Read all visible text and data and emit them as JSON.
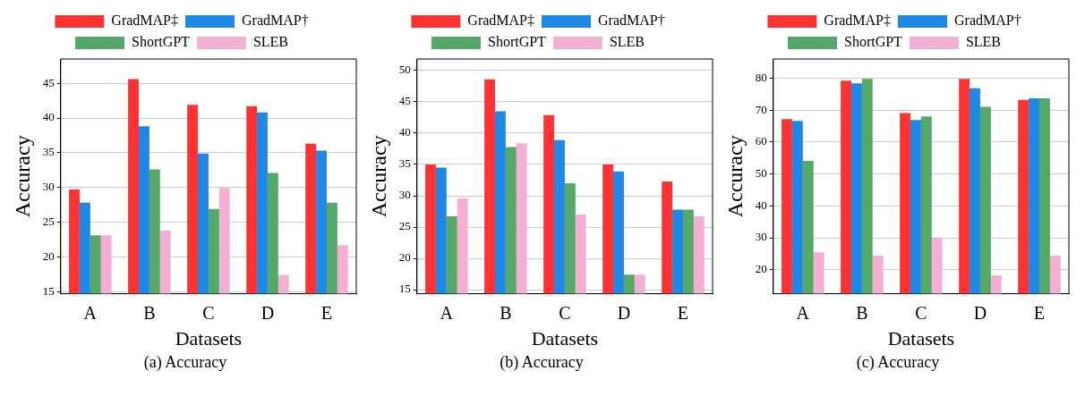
{
  "chart_data": [
    {
      "type": "bar",
      "xlabel": "Datasets",
      "ylabel": "Accuracy",
      "categories": [
        "A",
        "B",
        "C",
        "D",
        "E"
      ],
      "ylim": [
        14.7,
        48.5
      ],
      "yticks": [
        15,
        20,
        25,
        30,
        35,
        40,
        45
      ],
      "grid": "y",
      "legend": "top",
      "annotations": [
        "(a) Accuracy"
      ],
      "series": [
        {
          "name": "GradMAP‡",
          "color": "#ff3333",
          "values": [
            29.7,
            45.6,
            41.9,
            41.7,
            36.3
          ]
        },
        {
          "name": "GradMAP†",
          "color": "#1f88e5",
          "values": [
            27.8,
            38.8,
            34.9,
            40.8,
            35.3
          ]
        },
        {
          "name": "ShortGPT",
          "color": "#55a868",
          "values": [
            23.1,
            32.6,
            26.9,
            32.1,
            27.8
          ]
        },
        {
          "name": "SLEB",
          "color": "#f4afd4",
          "values": [
            23.1,
            23.8,
            29.9,
            17.4,
            21.7
          ]
        }
      ]
    },
    {
      "type": "bar",
      "xlabel": "Datasets",
      "ylabel": "Accuracy",
      "categories": [
        "A",
        "B",
        "C",
        "D",
        "E"
      ],
      "ylim": [
        14.35,
        51.85
      ],
      "yticks": [
        15,
        20,
        25,
        30,
        35,
        40,
        45,
        50
      ],
      "grid": "y",
      "legend": "top",
      "annotations": [
        "(b) Accuracy"
      ],
      "series": [
        {
          "name": "GradMAP‡",
          "color": "#ff3333",
          "values": [
            35.0,
            48.6,
            42.9,
            35.0,
            32.3
          ]
        },
        {
          "name": "GradMAP†",
          "color": "#1f88e5",
          "values": [
            34.5,
            43.5,
            38.9,
            33.9,
            27.8
          ]
        },
        {
          "name": "ShortGPT",
          "color": "#55a868",
          "values": [
            26.7,
            37.8,
            32.0,
            17.4,
            27.8
          ]
        },
        {
          "name": "SLEB",
          "color": "#f4afd4",
          "values": [
            29.6,
            38.4,
            27.0,
            17.4,
            26.7
          ]
        }
      ]
    },
    {
      "type": "bar",
      "xlabel": "Datasets",
      "ylabel": "Accuracy",
      "categories": [
        "A",
        "B",
        "C",
        "D",
        "E"
      ],
      "ylim": [
        12.5,
        86.0
      ],
      "yticks": [
        20,
        30,
        40,
        50,
        60,
        70,
        80
      ],
      "grid": "y",
      "legend": "top",
      "annotations": [
        "(c) Accuracy"
      ],
      "series": [
        {
          "name": "GradMAP‡",
          "color": "#ff3333",
          "values": [
            67.2,
            79.2,
            69.1,
            79.8,
            73.2
          ]
        },
        {
          "name": "GradMAP†",
          "color": "#1f88e5",
          "values": [
            66.6,
            78.4,
            66.9,
            76.8,
            73.7
          ]
        },
        {
          "name": "ShortGPT",
          "color": "#55a868",
          "values": [
            54.1,
            79.8,
            68.0,
            71.0,
            73.7
          ]
        },
        {
          "name": "SLEB",
          "color": "#f4afd4",
          "values": [
            25.5,
            24.4,
            30.1,
            18.3,
            24.4
          ]
        }
      ]
    }
  ]
}
